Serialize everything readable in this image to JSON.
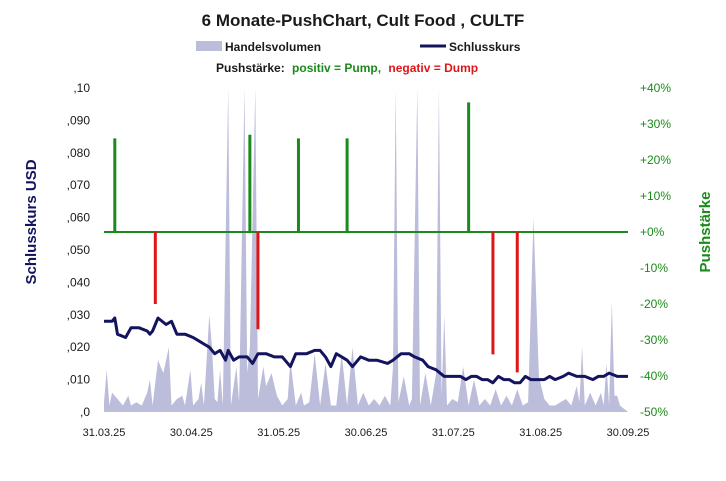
{
  "chart_data": {
    "type": "bar",
    "title": "6 Monate-PushChart,  Cult Food , CULTF",
    "legend": {
      "volume_label": "Handelsvolumen",
      "close_label": "Schlusskurs",
      "push_prefix": "Pushstärke:",
      "push_positive": "positiv = Pump,",
      "push_negative": "negativ = Dump"
    },
    "ylabel_left": "Schlusskurs USD",
    "ylabel_right": "Pushstärke",
    "ylim_left": [
      0,
      0.1
    ],
    "ylim_right": [
      -50,
      40
    ],
    "yticks_left": [
      ",0",
      ",010",
      ",020",
      ",030",
      ",040",
      ",050",
      ",060",
      ",070",
      ",080",
      ",090",
      ",10"
    ],
    "yticks_right": [
      "-50%",
      "-40%",
      "-30%",
      "-20%",
      "-10%",
      "+0%",
      "+10%",
      "+20%",
      "+30%",
      "+40%"
    ],
    "xticks": [
      "31.03.25",
      "30.04.25",
      "31.05.25",
      "30.06.25",
      "31.07.25",
      "31.08.25",
      "30.09.25"
    ],
    "close_price": [
      [
        0,
        0.028
      ],
      [
        3,
        0.028
      ],
      [
        4,
        0.029
      ],
      [
        5,
        0.024
      ],
      [
        8,
        0.023
      ],
      [
        10,
        0.026
      ],
      [
        13,
        0.026
      ],
      [
        16,
        0.025
      ],
      [
        17,
        0.024
      ],
      [
        18,
        0.025
      ],
      [
        20,
        0.029
      ],
      [
        23,
        0.027
      ],
      [
        25,
        0.028
      ],
      [
        27,
        0.024
      ],
      [
        30,
        0.024
      ],
      [
        33,
        0.023
      ],
      [
        35,
        0.022
      ],
      [
        37,
        0.021
      ],
      [
        39,
        0.02
      ],
      [
        41,
        0.018
      ],
      [
        43,
        0.019
      ],
      [
        45,
        0.016
      ],
      [
        46,
        0.019
      ],
      [
        48,
        0.016
      ],
      [
        50,
        0.017
      ],
      [
        53,
        0.017
      ],
      [
        55,
        0.015
      ],
      [
        57,
        0.018
      ],
      [
        60,
        0.018
      ],
      [
        63,
        0.017
      ],
      [
        66,
        0.017
      ],
      [
        69,
        0.014
      ],
      [
        71,
        0.018
      ],
      [
        75,
        0.018
      ],
      [
        78,
        0.019
      ],
      [
        80,
        0.019
      ],
      [
        82,
        0.017
      ],
      [
        84,
        0.014
      ],
      [
        86,
        0.018
      ],
      [
        88,
        0.017
      ],
      [
        90,
        0.016
      ],
      [
        92,
        0.014
      ],
      [
        95,
        0.017
      ],
      [
        98,
        0.016
      ],
      [
        101,
        0.016
      ],
      [
        105,
        0.015
      ],
      [
        107,
        0.016
      ],
      [
        110,
        0.018
      ],
      [
        113,
        0.018
      ],
      [
        115,
        0.017
      ],
      [
        118,
        0.016
      ],
      [
        120,
        0.014
      ],
      [
        123,
        0.013
      ],
      [
        126,
        0.011
      ],
      [
        130,
        0.011
      ],
      [
        132,
        0.011
      ],
      [
        134,
        0.01
      ],
      [
        136,
        0.011
      ],
      [
        138,
        0.011
      ],
      [
        140,
        0.01
      ],
      [
        142,
        0.01
      ],
      [
        144,
        0.009
      ],
      [
        146,
        0.011
      ],
      [
        148,
        0.01
      ],
      [
        150,
        0.01
      ],
      [
        152,
        0.009
      ],
      [
        154,
        0.009
      ],
      [
        156,
        0.011
      ],
      [
        158,
        0.01
      ],
      [
        160,
        0.01
      ],
      [
        163,
        0.01
      ],
      [
        165,
        0.011
      ],
      [
        167,
        0.01
      ],
      [
        170,
        0.011
      ],
      [
        172,
        0.012
      ],
      [
        175,
        0.011
      ],
      [
        178,
        0.011
      ],
      [
        181,
        0.01
      ],
      [
        183,
        0.011
      ],
      [
        185,
        0.011
      ],
      [
        187,
        0.012
      ],
      [
        190,
        0.011
      ],
      [
        194,
        0.011
      ]
    ],
    "volume": [
      [
        0,
        0.003
      ],
      [
        1,
        0.013
      ],
      [
        2,
        0.002
      ],
      [
        3,
        0.006
      ],
      [
        5,
        0.004
      ],
      [
        7,
        0.002
      ],
      [
        9,
        0.005
      ],
      [
        10,
        0.002
      ],
      [
        12,
        0.003
      ],
      [
        14,
        0.002
      ],
      [
        16,
        0.006
      ],
      [
        17,
        0.01
      ],
      [
        18,
        0.002
      ],
      [
        20,
        0.016
      ],
      [
        22,
        0.012
      ],
      [
        24,
        0.02
      ],
      [
        25,
        0.002
      ],
      [
        27,
        0.004
      ],
      [
        29,
        0.005
      ],
      [
        30,
        0.002
      ],
      [
        32,
        0.013
      ],
      [
        33,
        0.002
      ],
      [
        35,
        0.004
      ],
      [
        36,
        0.009
      ],
      [
        37,
        0.002
      ],
      [
        39,
        0.03
      ],
      [
        40,
        0.02
      ],
      [
        41,
        0.004
      ],
      [
        42,
        0.003
      ],
      [
        43,
        0.013
      ],
      [
        44,
        0.002
      ],
      [
        46,
        0.1
      ],
      [
        47,
        0.002
      ],
      [
        49,
        0.014
      ],
      [
        50,
        0.003
      ],
      [
        52,
        0.1
      ],
      [
        53,
        0.012
      ],
      [
        54,
        0.02
      ],
      [
        56,
        0.1
      ],
      [
        57,
        0.004
      ],
      [
        59,
        0.014
      ],
      [
        60,
        0.008
      ],
      [
        62,
        0.012
      ],
      [
        64,
        0.005
      ],
      [
        66,
        0.002
      ],
      [
        68,
        0.004
      ],
      [
        69,
        0.016
      ],
      [
        71,
        0.002
      ],
      [
        73,
        0.006
      ],
      [
        74,
        0.002
      ],
      [
        76,
        0.003
      ],
      [
        78,
        0.018
      ],
      [
        80,
        0.002
      ],
      [
        82,
        0.015
      ],
      [
        84,
        0.002
      ],
      [
        86,
        0.002
      ],
      [
        88,
        0.018
      ],
      [
        90,
        0.002
      ],
      [
        92,
        0.02
      ],
      [
        94,
        0.002
      ],
      [
        96,
        0.006
      ],
      [
        98,
        0.002
      ],
      [
        100,
        0.004
      ],
      [
        102,
        0.002
      ],
      [
        104,
        0.005
      ],
      [
        106,
        0.002
      ],
      [
        107,
        0.014
      ],
      [
        108,
        0.1
      ],
      [
        109,
        0.003
      ],
      [
        111,
        0.011
      ],
      [
        113,
        0.002
      ],
      [
        114,
        0.004
      ],
      [
        116,
        0.1
      ],
      [
        117,
        0.002
      ],
      [
        119,
        0.012
      ],
      [
        121,
        0.002
      ],
      [
        123,
        0.012
      ],
      [
        124,
        0.1
      ],
      [
        125,
        0.005
      ],
      [
        126,
        0.03
      ],
      [
        127,
        0.002
      ],
      [
        129,
        0.004
      ],
      [
        131,
        0.003
      ],
      [
        133,
        0.014
      ],
      [
        135,
        0.002
      ],
      [
        137,
        0.01
      ],
      [
        139,
        0.002
      ],
      [
        141,
        0.004
      ],
      [
        143,
        0.002
      ],
      [
        145,
        0.007
      ],
      [
        147,
        0.002
      ],
      [
        149,
        0.005
      ],
      [
        151,
        0.002
      ],
      [
        153,
        0.007
      ],
      [
        155,
        0.002
      ],
      [
        157,
        0.003
      ],
      [
        159,
        0.06
      ],
      [
        161,
        0.011
      ],
      [
        163,
        0.004
      ],
      [
        165,
        0.002
      ],
      [
        167,
        0.002
      ],
      [
        169,
        0.003
      ],
      [
        171,
        0.004
      ],
      [
        173,
        0.002
      ],
      [
        175,
        0.008
      ],
      [
        176,
        0.003
      ],
      [
        177,
        0.02
      ],
      [
        178,
        0.002
      ],
      [
        180,
        0.006
      ],
      [
        182,
        0.002
      ],
      [
        184,
        0.006
      ],
      [
        185,
        0.002
      ],
      [
        186,
        0.015
      ],
      [
        187,
        0.002
      ],
      [
        188,
        0.034
      ],
      [
        189,
        0.005
      ],
      [
        190,
        0.005
      ],
      [
        191,
        0.002
      ],
      [
        194,
        0
      ]
    ],
    "pushes": [
      [
        4,
        26
      ],
      [
        19,
        -20
      ],
      [
        54,
        27
      ],
      [
        57,
        -27
      ],
      [
        72,
        26
      ],
      [
        90,
        26
      ],
      [
        135,
        36
      ],
      [
        144,
        -34
      ],
      [
        153,
        -39
      ]
    ],
    "colors": {
      "volume": "#bcbcdb",
      "close": "#14145e",
      "pump": "#1a8a1a",
      "dump": "#e01515",
      "zero_line": "#1a8a1a"
    }
  }
}
